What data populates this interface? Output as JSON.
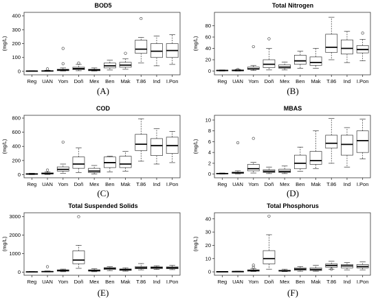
{
  "chart_data": [
    {
      "type": "box",
      "panel_label": "(A)",
      "title": "BOD5",
      "ylabel": "(mg/L)",
      "ylim": [
        -10,
        410
      ],
      "yticks": [
        0,
        100,
        200,
        300,
        400
      ],
      "categories": [
        "Reg",
        "UAN",
        "Yom",
        "Doñ",
        "Mex",
        "Ben",
        "Mak",
        "T.86",
        "Ind",
        "I.Pon"
      ],
      "boxes": [
        {
          "min": 0,
          "q1": 1,
          "median": 2,
          "q3": 3,
          "max": 5,
          "outliers": []
        },
        {
          "min": 0,
          "q1": 1,
          "median": 3,
          "q3": 5,
          "max": 8,
          "outliers": [
            18
          ]
        },
        {
          "min": 2,
          "q1": 5,
          "median": 10,
          "q3": 15,
          "max": 25,
          "outliers": [
            55,
            165
          ]
        },
        {
          "min": 5,
          "q1": 12,
          "median": 20,
          "q3": 30,
          "max": 50,
          "outliers": [
            60
          ]
        },
        {
          "min": 2,
          "q1": 5,
          "median": 10,
          "q3": 15,
          "max": 25,
          "outliers": []
        },
        {
          "min": 10,
          "q1": 25,
          "median": 40,
          "q3": 60,
          "max": 80,
          "outliers": []
        },
        {
          "min": 15,
          "q1": 30,
          "median": 45,
          "q3": 65,
          "max": 90,
          "outliers": [
            130
          ]
        },
        {
          "min": 60,
          "q1": 130,
          "median": 160,
          "q3": 225,
          "max": 245,
          "outliers": [
            380
          ]
        },
        {
          "min": 40,
          "q1": 100,
          "median": 145,
          "q3": 200,
          "max": 255,
          "outliers": []
        },
        {
          "min": 50,
          "q1": 100,
          "median": 150,
          "q3": 200,
          "max": 265,
          "outliers": []
        }
      ]
    },
    {
      "type": "box",
      "panel_label": "(B)",
      "title": "Total Nitrogen",
      "ylabel": "(mg/L)",
      "ylim": [
        -3,
        100
      ],
      "yticks": [
        0,
        20,
        40,
        60,
        80
      ],
      "categories": [
        "Reg",
        "UAN",
        "Yom",
        "Doñ",
        "Mex",
        "Ben",
        "Mak",
        "T.86",
        "Ind",
        "I.Pon"
      ],
      "boxes": [
        {
          "min": 0,
          "q1": 0.5,
          "median": 1,
          "q3": 1.5,
          "max": 2,
          "outliers": []
        },
        {
          "min": 0,
          "q1": 0.5,
          "median": 1,
          "q3": 2,
          "max": 3,
          "outliers": [
            3
          ]
        },
        {
          "min": 1,
          "q1": 3,
          "median": 4,
          "q3": 7,
          "max": 10,
          "outliers": [
            43
          ]
        },
        {
          "min": 2,
          "q1": 6,
          "median": 12,
          "q3": 20,
          "max": 40,
          "outliers": [
            57
          ]
        },
        {
          "min": 2,
          "q1": 5,
          "median": 7,
          "q3": 11,
          "max": 16,
          "outliers": []
        },
        {
          "min": 5,
          "q1": 12,
          "median": 18,
          "q3": 28,
          "max": 35,
          "outliers": []
        },
        {
          "min": 5,
          "q1": 10,
          "median": 15,
          "q3": 25,
          "max": 40,
          "outliers": []
        },
        {
          "min": 20,
          "q1": 33,
          "median": 42,
          "q3": 65,
          "max": 95,
          "outliers": []
        },
        {
          "min": 15,
          "q1": 30,
          "median": 40,
          "q3": 55,
          "max": 70,
          "outliers": []
        },
        {
          "min": 18,
          "q1": 32,
          "median": 38,
          "q3": 45,
          "max": 56,
          "outliers": [
            67
          ]
        }
      ]
    },
    {
      "type": "box",
      "panel_label": "(C)",
      "title": "COD",
      "ylabel": "(mg/L)",
      "ylim": [
        -15,
        810
      ],
      "yticks": [
        0,
        200,
        400,
        600,
        800
      ],
      "categories": [
        "Reg",
        "UAN",
        "Yom",
        "Doñ",
        "Mex",
        "Ben",
        "Mak",
        "T.86",
        "Ind",
        "I.Pon"
      ],
      "boxes": [
        {
          "min": 0,
          "q1": 5,
          "median": 10,
          "q3": 15,
          "max": 20,
          "outliers": []
        },
        {
          "min": 2,
          "q1": 10,
          "median": 15,
          "q3": 25,
          "max": 40,
          "outliers": [
            65
          ]
        },
        {
          "min": 20,
          "q1": 50,
          "median": 75,
          "q3": 110,
          "max": 150,
          "outliers": [
            460
          ]
        },
        {
          "min": 30,
          "q1": 90,
          "median": 150,
          "q3": 250,
          "max": 380,
          "outliers": []
        },
        {
          "min": 10,
          "q1": 30,
          "median": 50,
          "q3": 90,
          "max": 130,
          "outliers": []
        },
        {
          "min": 40,
          "q1": 100,
          "median": 170,
          "q3": 250,
          "max": 260,
          "outliers": []
        },
        {
          "min": 50,
          "q1": 100,
          "median": 150,
          "q3": 260,
          "max": 330,
          "outliers": []
        },
        {
          "min": 190,
          "q1": 340,
          "median": 430,
          "q3": 570,
          "max": 790,
          "outliers": []
        },
        {
          "min": 150,
          "q1": 270,
          "median": 410,
          "q3": 510,
          "max": 650,
          "outliers": []
        },
        {
          "min": 170,
          "q1": 300,
          "median": 410,
          "q3": 530,
          "max": 610,
          "outliers": []
        }
      ]
    },
    {
      "type": "box",
      "panel_label": "(D)",
      "title": "MBAS",
      "ylabel": "(mg/L)",
      "ylim": [
        -0.3,
        10.5
      ],
      "yticks": [
        0,
        2,
        4,
        6,
        8,
        10
      ],
      "categories": [
        "Reg",
        "UAN",
        "Yom",
        "Doñ",
        "Mex",
        "Ben",
        "Mak",
        "T.86",
        "Ind",
        "I.Pon"
      ],
      "boxes": [
        {
          "min": 0,
          "q1": 0.05,
          "median": 0.1,
          "q3": 0.15,
          "max": 0.2,
          "outliers": []
        },
        {
          "min": 0.05,
          "q1": 0.15,
          "median": 0.25,
          "q3": 0.35,
          "max": 0.6,
          "outliers": [
            5.8
          ]
        },
        {
          "min": 0.2,
          "q1": 0.6,
          "median": 1.0,
          "q3": 1.8,
          "max": 2.2,
          "outliers": [
            6.6
          ]
        },
        {
          "min": 0.1,
          "q1": 0.3,
          "median": 0.5,
          "q3": 0.8,
          "max": 1.3,
          "outliers": []
        },
        {
          "min": 0.1,
          "q1": 0.3,
          "median": 0.5,
          "q3": 0.9,
          "max": 1.5,
          "outliers": []
        },
        {
          "min": 0.5,
          "q1": 1.0,
          "median": 2.0,
          "q3": 3.5,
          "max": 5.0,
          "outliers": []
        },
        {
          "min": 1.0,
          "q1": 1.8,
          "median": 2.5,
          "q3": 4.2,
          "max": 8.0,
          "outliers": []
        },
        {
          "min": 2.0,
          "q1": 4.8,
          "median": 5.7,
          "q3": 7.2,
          "max": 10.3,
          "outliers": []
        },
        {
          "min": 1.3,
          "q1": 3.5,
          "median": 5.5,
          "q3": 7.2,
          "max": 8.6,
          "outliers": []
        },
        {
          "min": 2.8,
          "q1": 4.0,
          "median": 6.2,
          "q3": 8.0,
          "max": 10.2,
          "outliers": []
        }
      ]
    },
    {
      "type": "box",
      "panel_label": "(E)",
      "title": "Total Suspended Solids",
      "ylabel": "(mg/L)",
      "ylim": [
        -60,
        3100
      ],
      "yticks": [
        0,
        1000,
        2000,
        3000
      ],
      "categories": [
        "Reg",
        "UAN",
        "Yom",
        "Doñ",
        "Mex",
        "Ben",
        "Mak",
        "T.86",
        "Ind",
        "I.Pon"
      ],
      "boxes": [
        {
          "min": 0,
          "q1": 5,
          "median": 10,
          "q3": 20,
          "max": 30,
          "outliers": []
        },
        {
          "min": 5,
          "q1": 15,
          "median": 25,
          "q3": 40,
          "max": 60,
          "outliers": [
            290
          ]
        },
        {
          "min": 20,
          "q1": 50,
          "median": 80,
          "q3": 120,
          "max": 160,
          "outliers": []
        },
        {
          "min": 200,
          "q1": 450,
          "median": 650,
          "q3": 1150,
          "max": 1450,
          "outliers": [
            3000
          ]
        },
        {
          "min": 20,
          "q1": 50,
          "median": 80,
          "q3": 120,
          "max": 180,
          "outliers": []
        },
        {
          "min": 80,
          "q1": 140,
          "median": 190,
          "q3": 240,
          "max": 290,
          "outliers": []
        },
        {
          "min": 50,
          "q1": 90,
          "median": 130,
          "q3": 170,
          "max": 230,
          "outliers": []
        },
        {
          "min": 120,
          "q1": 180,
          "median": 230,
          "q3": 300,
          "max": 460,
          "outliers": []
        },
        {
          "min": 140,
          "q1": 190,
          "median": 240,
          "q3": 280,
          "max": 340,
          "outliers": []
        },
        {
          "min": 130,
          "q1": 180,
          "median": 230,
          "q3": 280,
          "max": 360,
          "outliers": []
        }
      ]
    },
    {
      "type": "box",
      "panel_label": "(F)",
      "title": "Total Phosphorus",
      "ylabel": "(mg/L)",
      "ylim": [
        -1,
        43
      ],
      "yticks": [
        0,
        10,
        20,
        30,
        40
      ],
      "categories": [
        "Reg",
        "UAN",
        "Yom",
        "Doñ",
        "Mex",
        "Ben",
        "Mak",
        "T.86",
        "Ind",
        "I.Pon"
      ],
      "boxes": [
        {
          "min": 0,
          "q1": 0.05,
          "median": 0.1,
          "q3": 0.2,
          "max": 0.3,
          "outliers": []
        },
        {
          "min": 0,
          "q1": 0.1,
          "median": 0.2,
          "q3": 0.3,
          "max": 0.5,
          "outliers": []
        },
        {
          "min": 0.2,
          "q1": 0.5,
          "median": 1.0,
          "q3": 1.5,
          "max": 2.5,
          "outliers": [
            3.5,
            5
          ]
        },
        {
          "min": 2,
          "q1": 6,
          "median": 10,
          "q3": 16,
          "max": 28,
          "outliers": [
            42
          ]
        },
        {
          "min": 0.2,
          "q1": 0.5,
          "median": 0.8,
          "q3": 1.2,
          "max": 2.0,
          "outliers": []
        },
        {
          "min": 0.5,
          "q1": 1.2,
          "median": 2.0,
          "q3": 3.0,
          "max": 4.0,
          "outliers": []
        },
        {
          "min": 0.5,
          "q1": 1.0,
          "median": 1.8,
          "q3": 3.0,
          "max": 5.0,
          "outliers": []
        },
        {
          "min": 2.0,
          "q1": 3.5,
          "median": 4.8,
          "q3": 6.0,
          "max": 8.0,
          "outliers": [
            2
          ]
        },
        {
          "min": 1.5,
          "q1": 3.0,
          "median": 4.5,
          "q3": 5.5,
          "max": 7.0,
          "outliers": []
        },
        {
          "min": 1.5,
          "q1": 3.0,
          "median": 4.0,
          "q3": 5.5,
          "max": 7.5,
          "outliers": []
        }
      ]
    }
  ]
}
